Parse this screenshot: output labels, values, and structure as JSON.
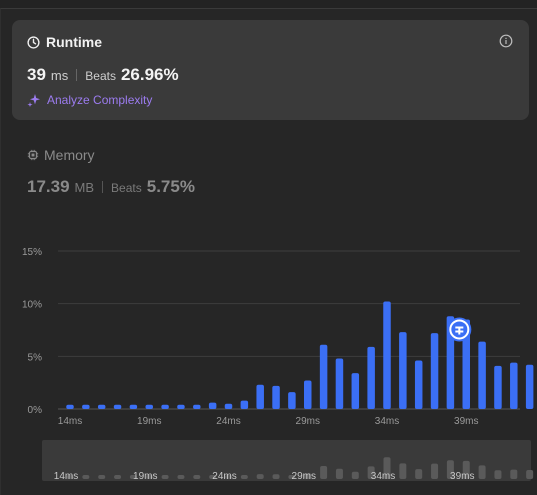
{
  "runtime": {
    "title": "Runtime",
    "value": "39",
    "unit": "ms",
    "beats_label": "Beats",
    "beats_value": "26.96%",
    "analyze_label": "Analyze Complexity",
    "icons": {
      "title": "clock-icon",
      "info": "info-icon",
      "analyze": "sparkle-icon"
    }
  },
  "memory": {
    "title": "Memory",
    "value": "17.39",
    "unit": "MB",
    "beats_label": "Beats",
    "beats_value": "5.75%",
    "icons": {
      "title": "chip-icon"
    }
  },
  "colors": {
    "bar": "#3b6ff5",
    "mini_bar": "#5a5a5a",
    "accent": "#9c7cf0"
  },
  "chart_data": {
    "type": "bar",
    "title": "",
    "xlabel": "",
    "ylabel": "",
    "ylim": [
      0,
      15
    ],
    "y_ticks": [
      "0%",
      "5%",
      "10%",
      "15%"
    ],
    "x_tick_labels": [
      "14ms",
      "19ms",
      "24ms",
      "29ms",
      "34ms",
      "39ms"
    ],
    "x_tick_values": [
      14,
      19,
      24,
      29,
      34,
      39
    ],
    "x": [
      14,
      15,
      16,
      17,
      18,
      19,
      20,
      21,
      22,
      23,
      24,
      25,
      26,
      27,
      28,
      29,
      30,
      31,
      32,
      33,
      34,
      35,
      36,
      37,
      38,
      39,
      40,
      41,
      42,
      43
    ],
    "values": [
      0.4,
      0.4,
      0.4,
      0.4,
      0.4,
      0.4,
      0.4,
      0.4,
      0.4,
      0.6,
      0.5,
      0.8,
      2.3,
      2.2,
      1.6,
      2.7,
      6.1,
      4.8,
      3.4,
      5.9,
      10.2,
      7.3,
      4.6,
      7.2,
      8.8,
      8.5,
      6.4,
      4.1,
      4.4,
      4.2
    ],
    "highlight_x": 39,
    "highlight_icon": "user-avatar-icon",
    "grid": true
  }
}
